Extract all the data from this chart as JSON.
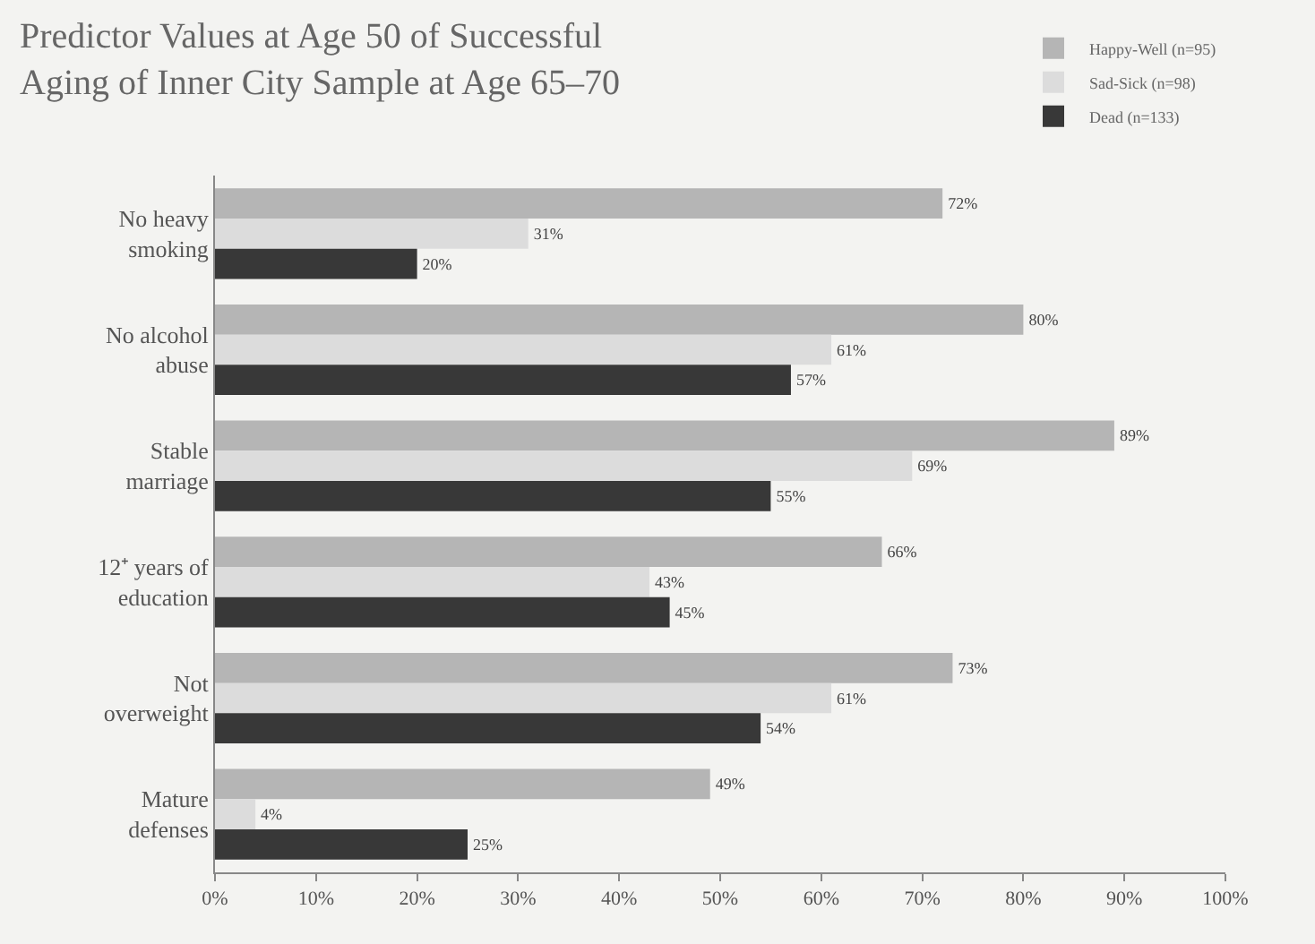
{
  "chart_data": {
    "type": "bar",
    "orientation": "horizontal",
    "title": "Predictor Values at Age 50 of Successful\nAging of Inner City Sample at Age 65–70",
    "categories": [
      "No heavy\nsmoking",
      "No alcohol\nabuse",
      "Stable\nmarriage",
      "12⁺ years of\neducation",
      "Not\noverweight",
      "Mature\ndefenses"
    ],
    "series": [
      {
        "name": "Happy-Well (n=95)",
        "color": "#b5b5b5",
        "values": [
          72,
          80,
          89,
          66,
          73,
          49
        ],
        "value_labels": [
          "72%",
          "80%",
          "89%",
          "66%",
          "73%",
          "49%"
        ]
      },
      {
        "name": "Sad-Sick (n=98)",
        "color": "#dcdcdc",
        "values": [
          31,
          61,
          69,
          43,
          61,
          4
        ],
        "value_labels": [
          "31%",
          "61%",
          "69%",
          "43%",
          "61%",
          "4%"
        ]
      },
      {
        "name": "Dead (n=133)",
        "color": "#383838",
        "values": [
          20,
          57,
          55,
          45,
          54,
          25
        ],
        "value_labels": [
          "20%",
          "57%",
          "55%",
          "45%",
          "54%",
          "25%"
        ]
      }
    ],
    "xlim": [
      0,
      100
    ],
    "xticks": [
      {
        "value": 0,
        "label": "0%"
      },
      {
        "value": 10,
        "label": "10%"
      },
      {
        "value": 20,
        "label": "20%"
      },
      {
        "value": 30,
        "label": "30%"
      },
      {
        "value": 40,
        "label": "40%"
      },
      {
        "value": 50,
        "label": "50%"
      },
      {
        "value": 60,
        "label": "60%"
      },
      {
        "value": 70,
        "label": "70%"
      },
      {
        "value": 80,
        "label": "80%"
      },
      {
        "value": 90,
        "label": "90%"
      },
      {
        "value": 100,
        "label": "100%"
      }
    ],
    "grid": false,
    "legend": "top right"
  }
}
